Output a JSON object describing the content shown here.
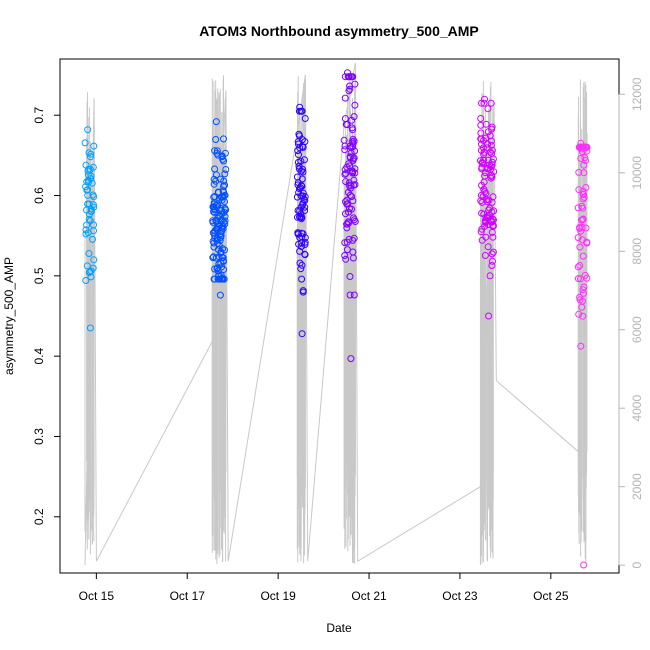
{
  "chart_data": {
    "type": "scatter",
    "title": "ATOM3 Northbound asymmetry_500_AMP",
    "xlabel": "Date",
    "ylabel": "asymmetry_500_AMP",
    "x_ticks": [
      "Oct 15",
      "Oct 17",
      "Oct 19",
      "Oct 21",
      "Oct 23",
      "Oct 25"
    ],
    "x_tick_days": [
      15,
      17,
      19,
      21,
      23,
      25
    ],
    "xlim": [
      14.2,
      26.5
    ],
    "ylim": [
      0.13,
      0.77
    ],
    "y_ticks": [
      0.2,
      0.3,
      0.4,
      0.5,
      0.6,
      0.7
    ],
    "y2_ticks": [
      0,
      2000,
      4000,
      6000,
      8000,
      10000,
      12000
    ],
    "y2lim": [
      -200,
      12900
    ],
    "grid": false,
    "point_color_gradient": [
      "#00a0ff",
      "#0050ff",
      "#3000ff",
      "#8000ff",
      "#d000ff",
      "#ff30ff"
    ],
    "line_color": "#c8c8c8",
    "clusters": [
      {
        "day_start": 14.75,
        "day_end": 14.95,
        "y_min": 0.435,
        "y_max": 0.682,
        "y_center": 0.585,
        "n": 50
      },
      {
        "day_start": 17.55,
        "day_end": 17.85,
        "y_min": 0.476,
        "y_max": 0.692,
        "y_center": 0.57,
        "n": 130
      },
      {
        "day_start": 19.42,
        "day_end": 19.6,
        "y_min": 0.428,
        "y_max": 0.71,
        "y_center": 0.6,
        "n": 75
      },
      {
        "day_start": 20.45,
        "day_end": 20.7,
        "y_min": 0.397,
        "y_max": 0.753,
        "y_center": 0.63,
        "n": 90
      },
      {
        "day_start": 23.45,
        "day_end": 23.75,
        "y_min": 0.45,
        "y_max": 0.72,
        "y_center": 0.6,
        "n": 100
      },
      {
        "day_start": 25.6,
        "day_end": 25.8,
        "y_min": 0.14,
        "y_max": 0.665,
        "y_center": 0.6,
        "n": 75
      }
    ],
    "line_series_y2": [
      {
        "day": 14.75,
        "value": 0
      },
      {
        "day": 14.95,
        "value": 11900
      },
      {
        "day": 15.0,
        "value": 100
      },
      {
        "day": 17.55,
        "value": 5700
      },
      {
        "day": 17.85,
        "value": 12100
      },
      {
        "day": 17.9,
        "value": 100
      },
      {
        "day": 19.42,
        "value": 11000
      },
      {
        "day": 19.6,
        "value": 12500
      },
      {
        "day": 19.65,
        "value": 100
      },
      {
        "day": 20.45,
        "value": 11200
      },
      {
        "day": 20.7,
        "value": 12800
      },
      {
        "day": 20.75,
        "value": 100
      },
      {
        "day": 23.45,
        "value": 2000
      },
      {
        "day": 23.75,
        "value": 11800
      },
      {
        "day": 23.8,
        "value": 4700
      },
      {
        "day": 25.6,
        "value": 2900
      },
      {
        "day": 25.8,
        "value": 11000
      }
    ]
  }
}
